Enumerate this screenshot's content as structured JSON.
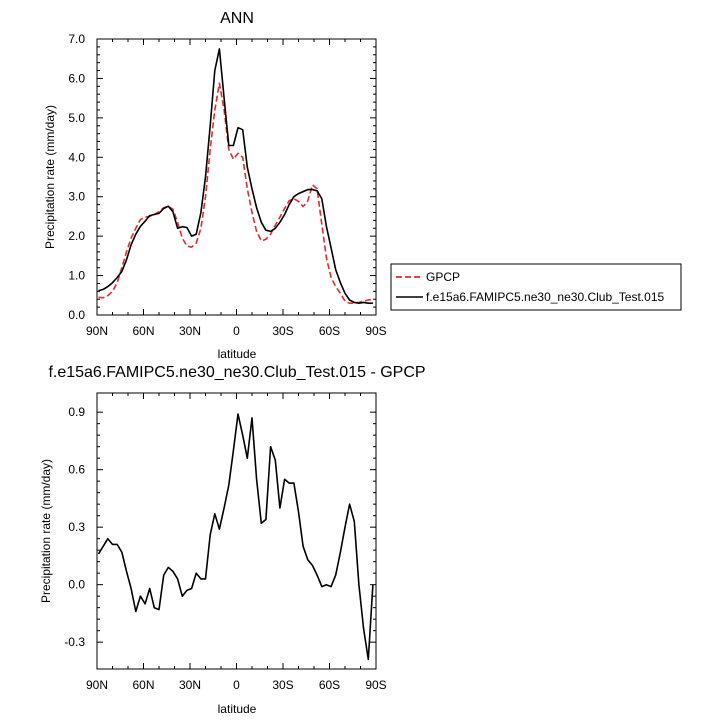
{
  "chart_data": [
    {
      "type": "line",
      "title": "ANN",
      "xlabel": "latitude",
      "ylabel": "Precipitation rate (mm/day)",
      "xlim": [
        90,
        -90
      ],
      "ylim": [
        0,
        7
      ],
      "xticks": [
        {
          "value": 90,
          "label": "90N"
        },
        {
          "value": 60,
          "label": "60N"
        },
        {
          "value": 30,
          "label": "30N"
        },
        {
          "value": 0,
          "label": "0"
        },
        {
          "value": -30,
          "label": "30S"
        },
        {
          "value": -60,
          "label": "60S"
        },
        {
          "value": -90,
          "label": "90S"
        }
      ],
      "yticks": [
        {
          "value": 0,
          "label": "0.0"
        },
        {
          "value": 1,
          "label": "1.0"
        },
        {
          "value": 2,
          "label": "2.0"
        },
        {
          "value": 3,
          "label": "3.0"
        },
        {
          "value": 4,
          "label": "4.0"
        },
        {
          "value": 5,
          "label": "5.0"
        },
        {
          "value": 6,
          "label": "6.0"
        },
        {
          "value": 7,
          "label": "7.0"
        }
      ],
      "grid": false,
      "legend": "right",
      "series": [
        {
          "name": "GPCP",
          "color": "#e8292c",
          "dash": "dashed",
          "x": [
            89,
            86,
            83,
            80,
            77,
            74,
            71,
            68,
            65,
            62,
            59,
            56,
            53,
            50,
            47,
            44,
            41,
            38,
            35,
            32,
            29,
            26,
            23,
            20,
            17,
            14,
            11,
            8,
            5,
            2,
            -1,
            -4,
            -7,
            -10,
            -13,
            -16,
            -19,
            -22,
            -25,
            -28,
            -31,
            -34,
            -37,
            -40,
            -43,
            -46,
            -49,
            -52,
            -55,
            -58,
            -61,
            -64,
            -67,
            -70,
            -73,
            -76,
            -79,
            -82,
            -85,
            -88
          ],
          "y": [
            0.45,
            0.44,
            0.49,
            0.6,
            0.82,
            1.2,
            1.6,
            1.95,
            2.2,
            2.42,
            2.48,
            2.5,
            2.55,
            2.62,
            2.72,
            2.76,
            2.68,
            2.35,
            1.95,
            1.75,
            1.72,
            1.82,
            2.2,
            3.0,
            4.2,
            5.2,
            5.88,
            5.2,
            4.2,
            3.95,
            4.1,
            4.0,
            3.2,
            2.6,
            2.12,
            1.88,
            1.92,
            2.05,
            2.28,
            2.48,
            2.7,
            2.9,
            2.95,
            2.88,
            2.75,
            2.9,
            3.3,
            3.2,
            2.3,
            1.45,
            0.95,
            0.72,
            0.55,
            0.35,
            0.3,
            0.3,
            0.32,
            0.35,
            0.38,
            0.4
          ]
        },
        {
          "name": "f.e15a6.FAMIPC5.ne30_ne30.Club_Test.015",
          "color": "#000000",
          "dash": "solid",
          "x": [
            89,
            86,
            83,
            80,
            77,
            74,
            71,
            68,
            65,
            62,
            59,
            56,
            53,
            50,
            47,
            44,
            41,
            38,
            35,
            32,
            29,
            26,
            23,
            20,
            17,
            14,
            11,
            8,
            5,
            2,
            -1,
            -4,
            -7,
            -10,
            -13,
            -16,
            -19,
            -22,
            -25,
            -28,
            -31,
            -34,
            -37,
            -40,
            -43,
            -46,
            -49,
            -52,
            -55,
            -58,
            -61,
            -64,
            -67,
            -70,
            -73,
            -76,
            -79,
            -82,
            -85,
            -88
          ],
          "y": [
            0.62,
            0.65,
            0.72,
            0.82,
            0.95,
            1.1,
            1.4,
            1.78,
            2.05,
            2.25,
            2.38,
            2.52,
            2.55,
            2.58,
            2.7,
            2.76,
            2.62,
            2.2,
            2.24,
            2.22,
            2.0,
            2.05,
            2.6,
            3.5,
            4.8,
            6.2,
            6.75,
            5.5,
            4.3,
            4.3,
            4.75,
            4.7,
            3.75,
            3.2,
            2.72,
            2.35,
            2.15,
            2.12,
            2.2,
            2.35,
            2.55,
            2.8,
            3.0,
            3.08,
            3.13,
            3.18,
            3.18,
            3.15,
            2.95,
            2.25,
            1.7,
            1.15,
            0.82,
            0.55,
            0.38,
            0.32,
            0.3,
            0.32,
            0.3,
            0.3
          ]
        }
      ]
    },
    {
      "type": "line",
      "title": "f.e15a6.FAMIPC5.ne30_ne30.Club_Test.015 - GPCP",
      "xlabel": "latitude",
      "ylabel": "Precipitation rate (mm/day)",
      "xlim": [
        90,
        -90
      ],
      "ylim": [
        -0.44,
        1.0
      ],
      "xticks": [
        {
          "value": 90,
          "label": "90N"
        },
        {
          "value": 60,
          "label": "60N"
        },
        {
          "value": 30,
          "label": "30N"
        },
        {
          "value": 0,
          "label": "0"
        },
        {
          "value": -30,
          "label": "30S"
        },
        {
          "value": -60,
          "label": "60S"
        },
        {
          "value": -90,
          "label": "90S"
        }
      ],
      "yticks": [
        {
          "value": -0.3,
          "label": "-0.3"
        },
        {
          "value": 0,
          "label": "0.0"
        },
        {
          "value": 0.3,
          "label": "0.3"
        },
        {
          "value": 0.6,
          "label": "0.6"
        },
        {
          "value": 0.9,
          "label": "0.9"
        }
      ],
      "grid": false,
      "series": [
        {
          "color": "#000000",
          "dash": "solid",
          "x": [
            89,
            86,
            83,
            80,
            77,
            74,
            71,
            68,
            65,
            62,
            59,
            56,
            53,
            50,
            47,
            44,
            41,
            38,
            35,
            32,
            29,
            26,
            23,
            20,
            17,
            14,
            11,
            8,
            5,
            2,
            -1,
            -4,
            -7,
            -10,
            -13,
            -16,
            -19,
            -22,
            -25,
            -28,
            -31,
            -34,
            -37,
            -40,
            -43,
            -46,
            -49,
            -52,
            -55,
            -58,
            -61,
            -64,
            -67,
            -70,
            -73,
            -76,
            -79,
            -82,
            -85,
            -88
          ],
          "y": [
            0.16,
            0.2,
            0.24,
            0.21,
            0.21,
            0.17,
            0.07,
            -0.02,
            -0.14,
            -0.06,
            -0.1,
            -0.02,
            -0.12,
            -0.13,
            0.05,
            0.09,
            0.07,
            0.03,
            -0.06,
            -0.03,
            -0.02,
            0.06,
            0.03,
            0.03,
            0.26,
            0.37,
            0.29,
            0.4,
            0.52,
            0.7,
            0.89,
            0.78,
            0.66,
            0.87,
            0.55,
            0.32,
            0.34,
            0.72,
            0.65,
            0.4,
            0.55,
            0.53,
            0.53,
            0.38,
            0.2,
            0.13,
            0.1,
            0.05,
            -0.01,
            0.0,
            -0.01,
            0.05,
            0.17,
            0.3,
            0.42,
            0.33,
            0.0,
            -0.23,
            -0.39,
            0.0
          ]
        }
      ]
    }
  ]
}
